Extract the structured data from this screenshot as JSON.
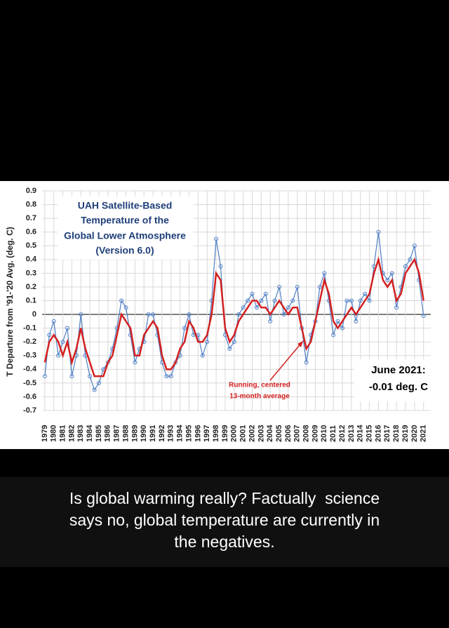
{
  "chart_data": {
    "type": "line",
    "title": [
      "UAH Satellite-Based",
      "Temperature of the",
      "Global Lower Atmosphere",
      "(Version 6.0)"
    ],
    "ylabel": "T Departure from '91-'20 Avg. (deg. C)",
    "annotations": [
      {
        "text": [
          "Running, centered",
          "13-month average"
        ],
        "color": "#d42020"
      },
      {
        "text": [
          "June 2021:",
          "-0.01 deg. C"
        ],
        "color": "#000000"
      }
    ],
    "x": [
      1979,
      1979.5,
      1980,
      1980.5,
      1981,
      1981.5,
      1982,
      1982.5,
      1983,
      1983.5,
      1984,
      1984.5,
      1985,
      1985.5,
      1986,
      1986.5,
      1987,
      1987.5,
      1988,
      1988.5,
      1989,
      1989.5,
      1990,
      1990.5,
      1991,
      1991.5,
      1992,
      1992.5,
      1993,
      1993.5,
      1994,
      1994.5,
      1995,
      1995.5,
      1996,
      1996.5,
      1997,
      1997.5,
      1998,
      1998.5,
      1999,
      1999.5,
      2000,
      2000.5,
      2001,
      2001.5,
      2002,
      2002.5,
      2003,
      2003.5,
      2004,
      2004.5,
      2005,
      2005.5,
      2006,
      2006.5,
      2007,
      2007.5,
      2008,
      2008.5,
      2009,
      2009.5,
      2010,
      2010.5,
      2011,
      2011.5,
      2012,
      2012.5,
      2013,
      2013.5,
      2014,
      2014.5,
      2015,
      2015.5,
      2016,
      2016.5,
      2017,
      2017.5,
      2018,
      2018.5,
      2019,
      2019.5,
      2020,
      2020.5,
      2021
    ],
    "series": [
      {
        "color": "#4f7fc4",
        "values": [
          -0.45,
          -0.15,
          -0.05,
          -0.3,
          -0.2,
          -0.1,
          -0.45,
          -0.3,
          0.0,
          -0.3,
          -0.45,
          -0.55,
          -0.5,
          -0.4,
          -0.35,
          -0.25,
          -0.1,
          0.1,
          0.05,
          -0.15,
          -0.35,
          -0.25,
          -0.2,
          0.0,
          0.0,
          -0.15,
          -0.35,
          -0.45,
          -0.45,
          -0.35,
          -0.3,
          -0.1,
          0.0,
          -0.15,
          -0.15,
          -0.3,
          -0.2,
          0.1,
          0.55,
          0.35,
          -0.15,
          -0.25,
          -0.2,
          0.0,
          0.05,
          0.1,
          0.15,
          0.05,
          0.1,
          0.15,
          -0.05,
          0.1,
          0.2,
          0.0,
          0.05,
          0.1,
          0.2,
          -0.1,
          -0.35,
          -0.15,
          -0.05,
          0.2,
          0.3,
          0.1,
          -0.15,
          -0.05,
          -0.1,
          0.1,
          0.1,
          -0.05,
          0.1,
          0.15,
          0.1,
          0.35,
          0.6,
          0.3,
          0.25,
          0.3,
          0.05,
          0.2,
          0.35,
          0.4,
          0.5,
          0.25,
          -0.01
        ]
      },
      {
        "color": "#d42020",
        "values": [
          -0.35,
          -0.2,
          -0.15,
          -0.2,
          -0.3,
          -0.2,
          -0.35,
          -0.25,
          -0.1,
          -0.25,
          -0.35,
          -0.45,
          -0.45,
          -0.45,
          -0.35,
          -0.3,
          -0.15,
          0.0,
          -0.05,
          -0.1,
          -0.3,
          -0.3,
          -0.15,
          -0.1,
          -0.05,
          -0.1,
          -0.3,
          -0.4,
          -0.4,
          -0.35,
          -0.25,
          -0.2,
          -0.05,
          -0.1,
          -0.2,
          -0.2,
          -0.15,
          0.0,
          0.3,
          0.25,
          -0.1,
          -0.2,
          -0.15,
          -0.05,
          0.0,
          0.05,
          0.1,
          0.1,
          0.05,
          0.05,
          0.0,
          0.05,
          0.1,
          0.05,
          0.0,
          0.05,
          0.05,
          -0.1,
          -0.25,
          -0.2,
          -0.05,
          0.1,
          0.25,
          0.15,
          -0.05,
          -0.1,
          -0.05,
          0.0,
          0.05,
          0.0,
          0.05,
          0.1,
          0.15,
          0.3,
          0.4,
          0.25,
          0.2,
          0.25,
          0.1,
          0.15,
          0.3,
          0.35,
          0.4,
          0.3,
          0.1
        ]
      }
    ],
    "xlim": [
      1978.7,
      2021.8
    ],
    "xticks": [
      1979,
      1980,
      1981,
      1982,
      1983,
      1984,
      1985,
      1986,
      1987,
      1988,
      1989,
      1990,
      1991,
      1992,
      1993,
      1994,
      1995,
      1996,
      1997,
      1998,
      1999,
      2000,
      2001,
      2002,
      2003,
      2004,
      2005,
      2006,
      2007,
      2008,
      2009,
      2010,
      2011,
      2012,
      2013,
      2014,
      2015,
      2016,
      2017,
      2018,
      2019,
      2020,
      2021
    ],
    "ylim": [
      -0.7,
      0.9
    ],
    "yticks": [
      -0.7,
      -0.6,
      -0.5,
      -0.4,
      -0.3,
      -0.2,
      -0.1,
      0,
      0.1,
      0.2,
      0.3,
      0.4,
      0.5,
      0.6,
      0.7,
      0.8,
      0.9
    ],
    "grid": true
  },
  "caption": [
    "Is global warming really? Factually  science",
    "says no, global temperature are currently in",
    "the negatives."
  ]
}
